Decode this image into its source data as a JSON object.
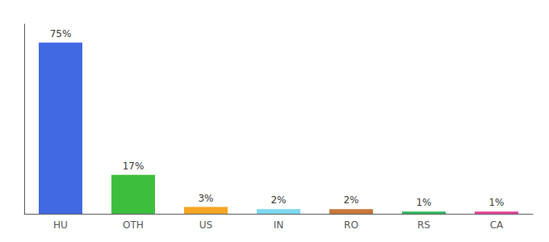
{
  "chart_data": {
    "type": "bar",
    "categories": [
      "HU",
      "OTH",
      "US",
      "IN",
      "RO",
      "RS",
      "CA"
    ],
    "values": [
      75,
      17,
      3,
      2,
      2,
      1,
      1
    ],
    "value_labels": [
      "75%",
      "17%",
      "3%",
      "2%",
      "2%",
      "1%",
      "1%"
    ],
    "colors": [
      "#4169e1",
      "#3dbf3d",
      "#f5a623",
      "#7dd8f0",
      "#c8783a",
      "#2db85a",
      "#e8409a"
    ],
    "ylim": [
      0,
      83
    ],
    "data_labels": true,
    "tick_labels": "x",
    "grid": false
  }
}
